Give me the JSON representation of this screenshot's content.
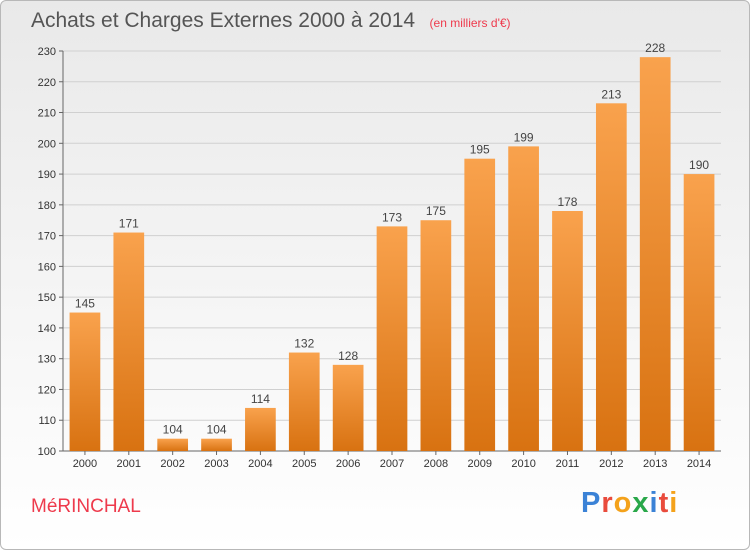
{
  "header": {
    "title": "Achats et Charges Externes 2000 à 2014",
    "subtitle": "(en milliers d'€)"
  },
  "footer": {
    "commune": "MéRINCHAL",
    "logo_text": "Proxiti",
    "logo_colors": [
      "#3b82d6",
      "#e94b3c",
      "#f4a21b",
      "#2aa84a",
      "#3b82d6",
      "#e94b3c",
      "#f4a21b"
    ]
  },
  "colors": {
    "bar_top": "#f9a24d",
    "bar_bottom": "#d87211",
    "grid": "#d0d0d0",
    "title": "#555555",
    "accent": "#ee3a4c"
  },
  "chart_data": {
    "type": "bar",
    "title": "Achats et Charges Externes 2000 à 2014",
    "subtitle": "(en milliers d'€)",
    "categories": [
      "2000",
      "2001",
      "2002",
      "2003",
      "2004",
      "2005",
      "2006",
      "2007",
      "2008",
      "2009",
      "2010",
      "2011",
      "2012",
      "2013",
      "2014"
    ],
    "values": [
      145,
      171,
      104,
      104,
      114,
      132,
      128,
      173,
      175,
      195,
      199,
      178,
      213,
      228,
      190
    ],
    "ylim": [
      100,
      230
    ],
    "yticks": [
      100,
      110,
      120,
      130,
      140,
      150,
      160,
      170,
      180,
      190,
      200,
      210,
      220,
      230
    ],
    "grid": true,
    "xlabel": "",
    "ylabel": ""
  }
}
